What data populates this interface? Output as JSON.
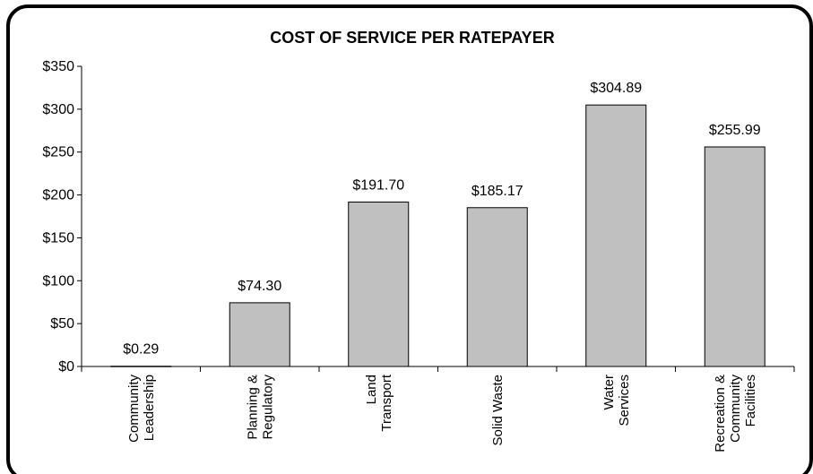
{
  "chart_data": {
    "type": "bar",
    "title": "COST OF SERVICE PER RATEPAYER",
    "categories": [
      [
        "Community",
        "Leadership"
      ],
      [
        "Planning &",
        "Regulatory"
      ],
      [
        "Land",
        "Transport"
      ],
      [
        "Solid Waste"
      ],
      [
        "Water",
        "Services"
      ],
      [
        "Recreation &",
        "Community",
        "Facilities"
      ]
    ],
    "values": [
      0.29,
      74.3,
      191.7,
      185.17,
      304.89,
      255.99
    ],
    "data_labels": [
      "$0.29",
      "$74.30",
      "$191.70",
      "$185.17",
      "$304.89",
      "$255.99"
    ],
    "yticks": [
      "$0",
      "$50",
      "$100",
      "$150",
      "$200",
      "$250",
      "$300",
      "$350"
    ],
    "ylim": [
      0,
      350
    ],
    "grid": false,
    "legend": "none",
    "bar_color": "#c0c0c0",
    "border_color": "#000000"
  }
}
